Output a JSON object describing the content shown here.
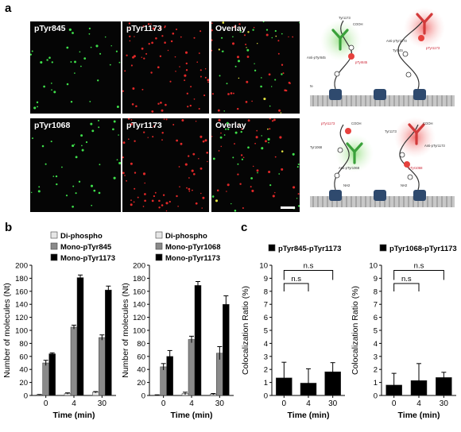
{
  "panels": {
    "a": "a",
    "b": "b",
    "c": "c"
  },
  "panel_a": {
    "images": [
      {
        "label": "pTyr845",
        "color": "green"
      },
      {
        "label": "pTyr1173",
        "color": "red"
      },
      {
        "label": "Overlay",
        "color": "mixed"
      },
      {
        "label": "pTyr1068",
        "color": "green"
      },
      {
        "label": "pTyr1173",
        "color": "red"
      },
      {
        "label": "Overlay",
        "color": "mixed"
      }
    ],
    "diagram_top": {
      "labels": [
        "Tyr1173",
        "COOH",
        "Anti-pTyr845",
        "pTyr845",
        "Anti-pTyr1173",
        "Tyr845",
        "pTyr1173",
        "N-"
      ]
    },
    "diagram_bottom": {
      "labels": [
        "pTyr1173",
        "COOH",
        "Tyr1068",
        "Anti-pTyr1068",
        "Tyr1173",
        "COOH",
        "Anti-pTyr1173",
        "pTyr1068",
        "NH2",
        "NH2"
      ]
    }
  },
  "chart_data": [
    {
      "type": "bar",
      "panel": "b",
      "legend": [
        "Di-phospho",
        "Mono-pTyr845",
        "Mono-pTyr1173"
      ],
      "categories": [
        "0",
        "4",
        "30"
      ],
      "xlabel": "Time (min)",
      "ylabel": "Number of molecules (Nt)",
      "ylim": [
        0,
        200
      ],
      "yticks": [
        0,
        20,
        40,
        60,
        80,
        100,
        120,
        140,
        160,
        180,
        200
      ],
      "series": [
        {
          "name": "Di-phospho",
          "color": "#e6e6e6",
          "values": [
            1,
            3,
            5
          ],
          "errors": [
            0.5,
            1,
            1
          ]
        },
        {
          "name": "Mono-pTyr845",
          "color": "#8a8a8a",
          "values": [
            50,
            105,
            89
          ],
          "errors": [
            4,
            3,
            4
          ]
        },
        {
          "name": "Mono-pTyr1173",
          "color": "#000000",
          "values": [
            64,
            181,
            162
          ],
          "errors": [
            1.5,
            4,
            6
          ]
        }
      ]
    },
    {
      "type": "bar",
      "panel": "b",
      "legend": [
        "Di-phospho",
        "Mono-pTyr1068",
        "Mono-pTyr1173"
      ],
      "categories": [
        "0",
        "4",
        "30"
      ],
      "xlabel": "Time (min)",
      "ylabel": "Number of molecules (Nt)",
      "ylim": [
        0,
        200
      ],
      "yticks": [
        0,
        20,
        40,
        60,
        80,
        100,
        120,
        140,
        160,
        180,
        200
      ],
      "series": [
        {
          "name": "Di-phospho",
          "color": "#e6e6e6",
          "values": [
            0.5,
            3,
            2
          ],
          "errors": [
            0.5,
            2,
            1
          ]
        },
        {
          "name": "Mono-pTyr1068",
          "color": "#8a8a8a",
          "values": [
            44,
            86,
            65
          ],
          "errors": [
            5,
            5,
            10
          ]
        },
        {
          "name": "Mono-pTyr1173",
          "color": "#000000",
          "values": [
            60,
            169,
            140
          ],
          "errors": [
            9,
            6,
            13
          ]
        }
      ]
    },
    {
      "type": "bar",
      "panel": "c",
      "legend": [
        "pTyr845-pTyr1173"
      ],
      "categories": [
        "0",
        "4",
        "30"
      ],
      "xlabel": "Time (min)",
      "ylabel": "Colocalization Ratio (%)",
      "ylim": [
        0,
        10
      ],
      "yticks": [
        0,
        1,
        2,
        3,
        4,
        5,
        6,
        7,
        8,
        9,
        10
      ],
      "significance": [
        {
          "from": 0,
          "to": 1,
          "label": "n.s"
        },
        {
          "from": 0,
          "to": 2,
          "label": "n.s"
        }
      ],
      "series": [
        {
          "name": "pTyr845-pTyr1173",
          "color": "#000000",
          "values": [
            1.35,
            0.95,
            1.82
          ],
          "errors": [
            1.2,
            1.1,
            0.7
          ]
        }
      ]
    },
    {
      "type": "bar",
      "panel": "c",
      "legend": [
        "pTyr1068-pTyr1173"
      ],
      "categories": [
        "0",
        "4",
        "30"
      ],
      "xlabel": "Time (min)",
      "ylabel": "Colocalization Ratio (%)",
      "ylim": [
        0,
        10
      ],
      "yticks": [
        0,
        1,
        2,
        3,
        4,
        5,
        6,
        7,
        8,
        9,
        10
      ],
      "significance": [
        {
          "from": 0,
          "to": 1,
          "label": "n.s"
        },
        {
          "from": 0,
          "to": 2,
          "label": "n.s"
        }
      ],
      "series": [
        {
          "name": "pTyr1068-pTyr1173",
          "color": "#000000",
          "values": [
            0.8,
            1.15,
            1.38
          ],
          "errors": [
            0.9,
            1.3,
            0.4
          ]
        }
      ]
    }
  ]
}
